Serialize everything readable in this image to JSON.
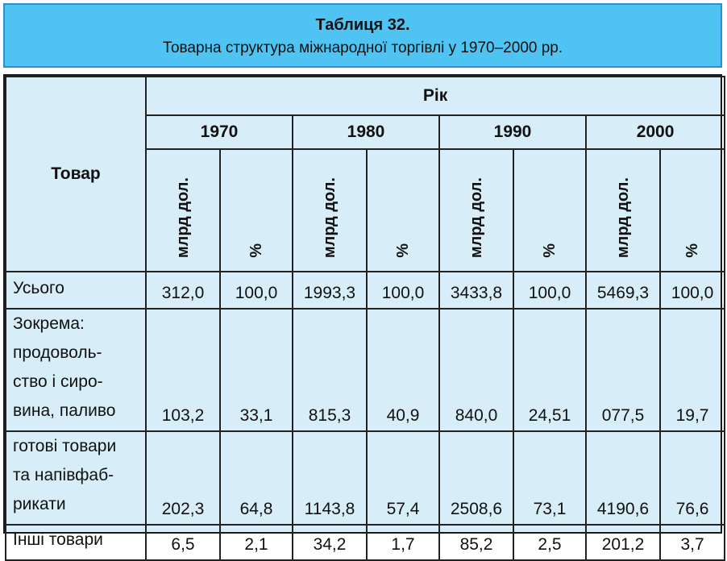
{
  "title": {
    "heading": "Таблиця 32.",
    "subheading": "Товарна структура міжнародної торгівлі у 1970–2000 рр."
  },
  "table": {
    "row_header": "Товар",
    "group_header": "Рік",
    "years": [
      "1970",
      "1980",
      "1990",
      "2000"
    ],
    "unit_value": "млрд дол.",
    "unit_percent": "%",
    "rows": [
      {
        "label_lines": [
          "Усього"
        ],
        "values": [
          "312,0",
          "100,0",
          "1993,3",
          "100,0",
          "3433,8",
          "100,0",
          "5469,3",
          "100,0"
        ]
      },
      {
        "label_lines": [
          "Зокрема:",
          "продоволь-",
          "ство і сиро-",
          "вина, паливо"
        ],
        "values": [
          "103,2",
          "33,1",
          "815,3",
          "40,9",
          "840,0",
          "24,51",
          "077,5",
          "19,7"
        ]
      },
      {
        "label_lines": [
          "готові товари",
          "та напівфаб-",
          "рикати"
        ],
        "values": [
          "202,3",
          "64,8",
          "1143,8",
          "57,4",
          "2508,6",
          "73,1",
          "4190,6",
          "76,6"
        ]
      },
      {
        "label_lines": [
          "Інші товари"
        ],
        "values": [
          "6,5",
          "2,1",
          "34,2",
          "1,7",
          "85,2",
          "2,5",
          "201,2",
          "3,7"
        ]
      }
    ]
  },
  "colors": {
    "title_bg": "#4fc3f2",
    "table_bg": "#d7edf8"
  }
}
